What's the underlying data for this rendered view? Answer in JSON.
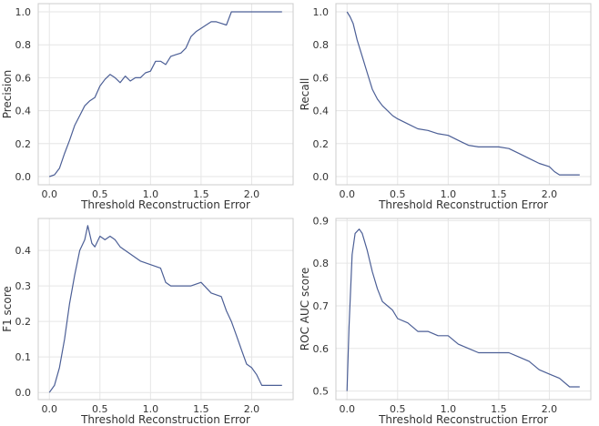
{
  "figure": {
    "style": "whitegrid",
    "line_color": "#4c5f96"
  },
  "chart_data": [
    {
      "type": "line",
      "xlabel": "Threshold Reconstruction Error",
      "ylabel": "Precision",
      "xlim": [
        -0.11,
        2.41
      ],
      "ylim": [
        -0.05,
        1.05
      ],
      "xticks": [
        0.0,
        0.5,
        1.0,
        1.5,
        2.0
      ],
      "xtick_labels": [
        "0.0",
        "0.5",
        "1.0",
        "1.5",
        "2.0"
      ],
      "yticks": [
        0.0,
        0.2,
        0.4,
        0.6,
        0.8,
        1.0
      ],
      "ytick_labels": [
        "0.0",
        "0.2",
        "0.4",
        "0.6",
        "0.8",
        "1.0"
      ],
      "grid": true,
      "series": [
        {
          "x": [
            0.0,
            0.05,
            0.1,
            0.15,
            0.2,
            0.25,
            0.3,
            0.35,
            0.4,
            0.45,
            0.5,
            0.55,
            0.6,
            0.65,
            0.7,
            0.75,
            0.8,
            0.85,
            0.9,
            0.95,
            1.0,
            1.05,
            1.1,
            1.15,
            1.2,
            1.25,
            1.3,
            1.35,
            1.4,
            1.45,
            1.5,
            1.55,
            1.6,
            1.65,
            1.7,
            1.75,
            1.8,
            1.83,
            1.9,
            2.0,
            2.1,
            2.2,
            2.3
          ],
          "y": [
            0.0,
            0.01,
            0.05,
            0.14,
            0.22,
            0.31,
            0.37,
            0.43,
            0.46,
            0.48,
            0.55,
            0.59,
            0.62,
            0.6,
            0.57,
            0.61,
            0.58,
            0.6,
            0.6,
            0.63,
            0.64,
            0.7,
            0.7,
            0.68,
            0.73,
            0.74,
            0.75,
            0.78,
            0.85,
            0.88,
            0.9,
            0.92,
            0.94,
            0.94,
            0.93,
            0.92,
            1.0,
            1.0,
            1.0,
            1.0,
            1.0,
            1.0,
            1.0
          ]
        }
      ]
    },
    {
      "type": "line",
      "xlabel": "Threshold Reconstruction Error",
      "ylabel": "Recall",
      "xlim": [
        -0.11,
        2.41
      ],
      "ylim": [
        -0.05,
        1.05
      ],
      "xticks": [
        0.0,
        0.5,
        1.0,
        1.5,
        2.0
      ],
      "xtick_labels": [
        "0.0",
        "0.5",
        "1.0",
        "1.5",
        "2.0"
      ],
      "yticks": [
        0.0,
        0.2,
        0.4,
        0.6,
        0.8,
        1.0
      ],
      "ytick_labels": [
        "0.0",
        "0.2",
        "0.4",
        "0.6",
        "0.8",
        "1.0"
      ],
      "grid": true,
      "series": [
        {
          "x": [
            0.0,
            0.03,
            0.06,
            0.1,
            0.15,
            0.2,
            0.25,
            0.3,
            0.35,
            0.4,
            0.45,
            0.5,
            0.6,
            0.7,
            0.8,
            0.9,
            1.0,
            1.1,
            1.2,
            1.3,
            1.4,
            1.5,
            1.6,
            1.7,
            1.8,
            1.9,
            2.0,
            2.05,
            2.1,
            2.2,
            2.3
          ],
          "y": [
            1.0,
            0.97,
            0.93,
            0.83,
            0.73,
            0.63,
            0.53,
            0.47,
            0.43,
            0.4,
            0.37,
            0.35,
            0.32,
            0.29,
            0.28,
            0.26,
            0.25,
            0.22,
            0.19,
            0.18,
            0.18,
            0.18,
            0.17,
            0.14,
            0.11,
            0.08,
            0.06,
            0.03,
            0.01,
            0.01,
            0.01
          ]
        }
      ]
    },
    {
      "type": "line",
      "xlabel": "Threshold Reconstruction Error",
      "ylabel": "F1 score",
      "xlim": [
        -0.11,
        2.41
      ],
      "ylim": [
        -0.02,
        0.49
      ],
      "xticks": [
        0.0,
        0.5,
        1.0,
        1.5,
        2.0
      ],
      "xtick_labels": [
        "0.0",
        "0.5",
        "1.0",
        "1.5",
        "2.0"
      ],
      "yticks": [
        0.0,
        0.1,
        0.2,
        0.3,
        0.4
      ],
      "ytick_labels": [
        "0.0",
        "0.1",
        "0.2",
        "0.3",
        "0.4"
      ],
      "grid": true,
      "series": [
        {
          "x": [
            0.0,
            0.05,
            0.1,
            0.15,
            0.2,
            0.25,
            0.3,
            0.35,
            0.38,
            0.42,
            0.45,
            0.5,
            0.55,
            0.6,
            0.65,
            0.7,
            0.8,
            0.9,
            1.0,
            1.1,
            1.15,
            1.2,
            1.3,
            1.4,
            1.5,
            1.6,
            1.7,
            1.75,
            1.8,
            1.85,
            1.9,
            1.95,
            2.0,
            2.05,
            2.1,
            2.15,
            2.3
          ],
          "y": [
            0.0,
            0.02,
            0.07,
            0.15,
            0.25,
            0.33,
            0.4,
            0.43,
            0.47,
            0.42,
            0.41,
            0.44,
            0.43,
            0.44,
            0.43,
            0.41,
            0.39,
            0.37,
            0.36,
            0.35,
            0.31,
            0.3,
            0.3,
            0.3,
            0.31,
            0.28,
            0.27,
            0.23,
            0.2,
            0.16,
            0.12,
            0.08,
            0.07,
            0.05,
            0.02,
            0.02,
            0.02
          ]
        }
      ]
    },
    {
      "type": "line",
      "xlabel": "Threshold Reconstruction Error",
      "ylabel": "ROC AUC score",
      "xlim": [
        -0.11,
        2.41
      ],
      "ylim": [
        0.48,
        0.905
      ],
      "xticks": [
        0.0,
        0.5,
        1.0,
        1.5,
        2.0
      ],
      "xtick_labels": [
        "0.0",
        "0.5",
        "1.0",
        "1.5",
        "2.0"
      ],
      "yticks": [
        0.5,
        0.6,
        0.7,
        0.8,
        0.9
      ],
      "ytick_labels": [
        "0.5",
        "0.6",
        "0.7",
        "0.8",
        "0.9"
      ],
      "grid": true,
      "series": [
        {
          "x": [
            0.0,
            0.02,
            0.05,
            0.08,
            0.12,
            0.15,
            0.2,
            0.25,
            0.3,
            0.35,
            0.4,
            0.45,
            0.5,
            0.6,
            0.7,
            0.8,
            0.9,
            1.0,
            1.1,
            1.2,
            1.3,
            1.4,
            1.5,
            1.6,
            1.7,
            1.8,
            1.9,
            2.0,
            2.1,
            2.2,
            2.3
          ],
          "y": [
            0.5,
            0.65,
            0.82,
            0.87,
            0.88,
            0.87,
            0.83,
            0.78,
            0.74,
            0.71,
            0.7,
            0.69,
            0.67,
            0.66,
            0.64,
            0.64,
            0.63,
            0.63,
            0.61,
            0.6,
            0.59,
            0.59,
            0.59,
            0.59,
            0.58,
            0.57,
            0.55,
            0.54,
            0.53,
            0.51,
            0.51
          ]
        }
      ]
    }
  ]
}
